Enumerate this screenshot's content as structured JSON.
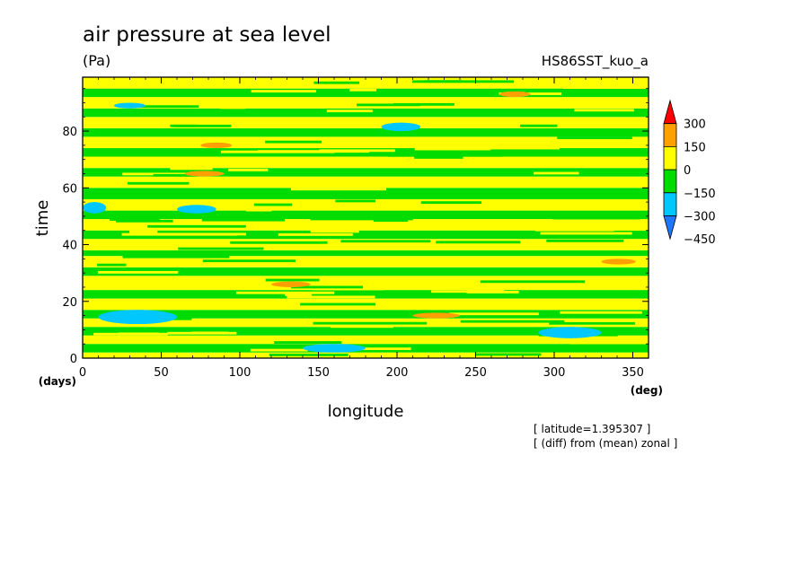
{
  "chart_data": {
    "type": "heatmap",
    "title": "air pressure at sea level",
    "units": "(Pa)",
    "run_label": "HS86SST_kuo_a",
    "xlabel": "longitude",
    "x_unit": "(deg)",
    "ylabel": "time",
    "y_unit": "(days)",
    "xlim": [
      0,
      360
    ],
    "ylim": [
      0,
      99
    ],
    "x_ticks": [
      0,
      50,
      100,
      150,
      200,
      250,
      300,
      350
    ],
    "y_ticks": [
      0,
      20,
      40,
      60,
      80
    ],
    "colorbar": {
      "levels": [
        -450,
        -300,
        -150,
        0,
        150,
        300
      ],
      "level_labels": [
        "300",
        "150",
        "0",
        "−150",
        "−300",
        "−450"
      ],
      "colors": [
        "#1e78ff",
        "#00c8ff",
        "#00dc00",
        "#ffff00",
        "#ffa000",
        "#ff0000"
      ]
    },
    "annotations": [
      "[ latitude=1.395307 ]",
      "[ (diff) from (mean) zonal ]"
    ],
    "bands": [
      {
        "t0": 0,
        "t1": 2,
        "v": "0-150"
      },
      {
        "t0": 2,
        "t1": 5,
        "v": "-150-0"
      },
      {
        "t0": 5,
        "t1": 8,
        "v": "0-150"
      },
      {
        "t0": 8,
        "t1": 11,
        "v": "-150-0"
      },
      {
        "t0": 11,
        "t1": 14,
        "v": "0-150"
      },
      {
        "t0": 14,
        "t1": 17,
        "v": "-150-0"
      },
      {
        "t0": 17,
        "t1": 21,
        "v": "0-150"
      },
      {
        "t0": 21,
        "t1": 24,
        "v": "-150-0"
      },
      {
        "t0": 24,
        "t1": 29,
        "v": "0-150"
      },
      {
        "t0": 29,
        "t1": 32,
        "v": "-150-0"
      },
      {
        "t0": 32,
        "t1": 36,
        "v": "0-150"
      },
      {
        "t0": 36,
        "t1": 38,
        "v": "-150-0"
      },
      {
        "t0": 38,
        "t1": 42,
        "v": "0-150"
      },
      {
        "t0": 42,
        "t1": 45,
        "v": "-150-0"
      },
      {
        "t0": 45,
        "t1": 49,
        "v": "0-150"
      },
      {
        "t0": 49,
        "t1": 52,
        "v": "-150-0"
      },
      {
        "t0": 52,
        "t1": 56,
        "v": "0-150"
      },
      {
        "t0": 56,
        "t1": 60,
        "v": "-150-0"
      },
      {
        "t0": 60,
        "t1": 64,
        "v": "0-150"
      },
      {
        "t0": 64,
        "t1": 67,
        "v": "-150-0"
      },
      {
        "t0": 67,
        "t1": 71,
        "v": "0-150"
      },
      {
        "t0": 71,
        "t1": 74,
        "v": "-150-0"
      },
      {
        "t0": 74,
        "t1": 78,
        "v": "0-150"
      },
      {
        "t0": 78,
        "t1": 81,
        "v": "-150-0"
      },
      {
        "t0": 81,
        "t1": 85,
        "v": "0-150"
      },
      {
        "t0": 85,
        "t1": 88,
        "v": "-150-0"
      },
      {
        "t0": 88,
        "t1": 92,
        "v": "0-150"
      },
      {
        "t0": 92,
        "t1": 95,
        "v": "-150-0"
      },
      {
        "t0": 95,
        "t1": 99,
        "v": "0-150"
      }
    ],
    "patches": [
      {
        "lon0": 10,
        "lon1": 60,
        "t0": 12,
        "t1": 17,
        "v": "-300--150"
      },
      {
        "lon0": 290,
        "lon1": 330,
        "t0": 7,
        "t1": 11,
        "v": "-300--150"
      },
      {
        "lon0": 140,
        "lon1": 180,
        "t0": 2,
        "t1": 5,
        "v": "-300--150"
      },
      {
        "lon0": 190,
        "lon1": 215,
        "t0": 80,
        "t1": 83,
        "v": "-300--150"
      },
      {
        "lon0": 60,
        "lon1": 85,
        "t0": 51,
        "t1": 54,
        "v": "-300--150"
      },
      {
        "lon0": 0,
        "lon1": 15,
        "t0": 51,
        "t1": 55,
        "v": "-300--150"
      },
      {
        "lon0": 20,
        "lon1": 40,
        "t0": 88,
        "t1": 90,
        "v": "-300--150"
      },
      {
        "lon0": 65,
        "lon1": 90,
        "t0": 64,
        "t1": 66,
        "v": "150-300"
      },
      {
        "lon0": 210,
        "lon1": 240,
        "t0": 14,
        "t1": 16,
        "v": "150-300"
      },
      {
        "lon0": 120,
        "lon1": 145,
        "t0": 25,
        "t1": 27,
        "v": "150-300"
      },
      {
        "lon0": 265,
        "lon1": 285,
        "t0": 92,
        "t1": 94,
        "v": "150-300"
      },
      {
        "lon0": 75,
        "lon1": 95,
        "t0": 74,
        "t1": 76,
        "v": "150-300"
      },
      {
        "lon0": 330,
        "lon1": 352,
        "t0": 33,
        "t1": 35,
        "v": "150-300"
      }
    ]
  }
}
